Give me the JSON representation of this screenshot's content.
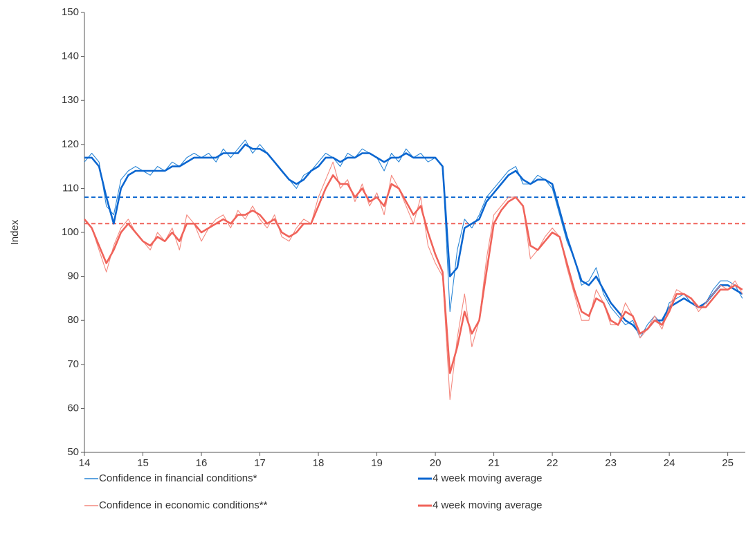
{
  "chart_data": {
    "type": "line",
    "y_label": "Index",
    "x": [
      14,
      14.125,
      14.25,
      14.375,
      14.5,
      14.625,
      14.75,
      14.875,
      15,
      15.125,
      15.25,
      15.375,
      15.5,
      15.625,
      15.75,
      15.875,
      16,
      16.125,
      16.25,
      16.375,
      16.5,
      16.625,
      16.75,
      16.875,
      17,
      17.125,
      17.25,
      17.375,
      17.5,
      17.625,
      17.75,
      17.875,
      18,
      18.125,
      18.25,
      18.375,
      18.5,
      18.625,
      18.75,
      18.875,
      19,
      19.125,
      19.25,
      19.375,
      19.5,
      19.625,
      19.75,
      19.875,
      20,
      20.125,
      20.25,
      20.375,
      20.5,
      20.625,
      20.75,
      20.875,
      21,
      21.125,
      21.25,
      21.375,
      21.5,
      21.625,
      21.75,
      21.875,
      22,
      22.125,
      22.25,
      22.375,
      22.5,
      22.625,
      22.75,
      22.875,
      23,
      23.125,
      23.25,
      23.375,
      23.5,
      23.625,
      23.75,
      23.875,
      24,
      24.125,
      24.25,
      24.375,
      24.5,
      24.625,
      24.75,
      24.875,
      25,
      25.125,
      25.25
    ],
    "series": [
      {
        "name": "Confidence in financial conditions*",
        "color": "#2a86d6",
        "values": [
          116,
          118,
          116,
          106,
          104,
          112,
          114,
          115,
          114,
          113,
          115,
          114,
          116,
          115,
          117,
          118,
          117,
          118,
          116,
          119,
          117,
          119,
          121,
          118,
          120,
          118,
          116,
          114,
          112,
          110,
          113,
          114,
          116,
          118,
          117,
          115,
          118,
          117,
          119,
          118,
          117,
          114,
          118,
          116,
          119,
          117,
          118,
          116,
          117,
          115,
          82,
          96,
          103,
          101,
          104,
          108,
          110,
          112,
          114,
          115,
          111,
          111,
          113,
          112,
          110,
          104,
          98,
          94,
          88,
          89,
          92,
          86,
          83,
          81,
          79,
          80,
          76,
          79,
          81,
          79,
          84,
          85,
          86,
          84,
          83,
          84,
          87,
          89,
          89,
          88,
          85
        ]
      },
      {
        "name": "4 week moving average",
        "color": "#0b66d0",
        "values": [
          117,
          117,
          115,
          108,
          102,
          110,
          113,
          114,
          114,
          114,
          114,
          114,
          115,
          115,
          116,
          117,
          117,
          117,
          117,
          118,
          118,
          118,
          120,
          119,
          119,
          118,
          116,
          114,
          112,
          111,
          112,
          114,
          115,
          117,
          117,
          116,
          117,
          117,
          118,
          118,
          117,
          116,
          117,
          117,
          118,
          117,
          117,
          117,
          117,
          115,
          90,
          92,
          101,
          102,
          103,
          107,
          109,
          111,
          113,
          114,
          112,
          111,
          112,
          112,
          111,
          105,
          99,
          94,
          89,
          88,
          90,
          87,
          84,
          82,
          80,
          79,
          77,
          78,
          80,
          80,
          83,
          84,
          85,
          84,
          83,
          84,
          86,
          88,
          88,
          87,
          86
        ]
      },
      {
        "name": "Confidence in economic conditions**",
        "color": "#f4897f",
        "values": [
          103,
          101,
          96,
          91,
          97,
          101,
          103,
          100,
          98,
          96,
          100,
          98,
          101,
          96,
          104,
          102,
          98,
          101,
          103,
          104,
          101,
          105,
          103,
          106,
          103,
          101,
          104,
          99,
          98,
          101,
          103,
          102,
          108,
          112,
          116,
          110,
          112,
          107,
          111,
          106,
          109,
          104,
          113,
          110,
          106,
          102,
          108,
          97,
          93,
          90,
          62,
          76,
          86,
          74,
          80,
          94,
          104,
          106,
          108,
          108,
          106,
          94,
          96,
          99,
          101,
          99,
          92,
          86,
          80,
          80,
          87,
          84,
          79,
          79,
          84,
          81,
          76,
          78,
          81,
          78,
          83,
          87,
          86,
          85,
          82,
          84,
          86,
          88,
          87,
          89,
          86
        ]
      },
      {
        "name": "4 week moving average",
        "color": "#f0635a",
        "values": [
          103,
          101,
          97,
          93,
          96,
          100,
          102,
          100,
          98,
          97,
          99,
          98,
          100,
          98,
          102,
          102,
          100,
          101,
          102,
          103,
          102,
          104,
          104,
          105,
          104,
          102,
          103,
          100,
          99,
          100,
          102,
          102,
          106,
          110,
          113,
          111,
          111,
          108,
          110,
          107,
          108,
          106,
          111,
          110,
          107,
          104,
          106,
          100,
          95,
          91,
          68,
          74,
          82,
          77,
          80,
          91,
          102,
          105,
          107,
          108,
          106,
          97,
          96,
          98,
          100,
          99,
          93,
          87,
          82,
          81,
          85,
          84,
          80,
          79,
          82,
          81,
          77,
          78,
          80,
          79,
          82,
          86,
          86,
          85,
          83,
          83,
          85,
          87,
          87,
          88,
          87
        ]
      }
    ],
    "reference_lines": [
      {
        "value": 108,
        "color": "#0b66d0"
      },
      {
        "value": 102,
        "color": "#f0635a"
      }
    ],
    "xlim": [
      14,
      25.3
    ],
    "xticks": [
      14,
      15,
      16,
      17,
      18,
      19,
      20,
      21,
      22,
      23,
      24,
      25
    ],
    "ylim": [
      50,
      150
    ],
    "yticks": [
      50,
      60,
      70,
      80,
      90,
      100,
      110,
      120,
      130,
      140,
      150
    ],
    "grid": false
  }
}
